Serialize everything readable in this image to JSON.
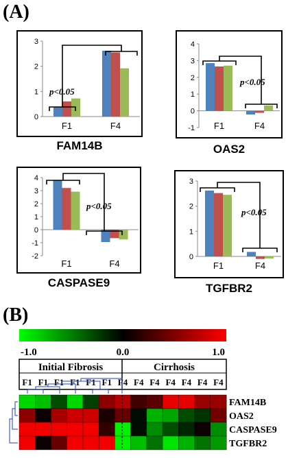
{
  "panel_labels": {
    "a": "(A)",
    "b": "(B)"
  },
  "series_colors": [
    "#4f81bd",
    "#c0504d",
    "#9bbb59"
  ],
  "chart_data": [
    {
      "type": "bar",
      "title": "FAM14B",
      "categories": [
        "F1",
        "F4"
      ],
      "series": [
        {
          "values": [
            0.38,
            2.62
          ]
        },
        {
          "values": [
            0.6,
            2.55
          ]
        },
        {
          "values": [
            0.72,
            1.92
          ]
        }
      ],
      "ylim": [
        0,
        3
      ],
      "yticks": [
        "0",
        "1",
        "2",
        "3"
      ],
      "annotation": "p<0.05"
    },
    {
      "type": "bar",
      "title": "OAS2",
      "categories": [
        "F1",
        "F4"
      ],
      "series": [
        {
          "values": [
            2.85,
            -0.22
          ]
        },
        {
          "values": [
            2.65,
            -0.12
          ]
        },
        {
          "values": [
            2.7,
            0.32
          ]
        }
      ],
      "ylim": [
        -1,
        4
      ],
      "yticks": [
        "-1",
        "0",
        "1",
        "2",
        "3",
        "4"
      ],
      "annotation": "p<0.05"
    },
    {
      "type": "bar",
      "title": "CASPASE9",
      "categories": [
        "F1",
        "F4"
      ],
      "series": [
        {
          "values": [
            3.8,
            -0.95
          ]
        },
        {
          "values": [
            3.2,
            -0.65
          ]
        },
        {
          "values": [
            2.92,
            -0.75
          ]
        }
      ],
      "ylim": [
        -2,
        4
      ],
      "yticks": [
        "-2",
        "-1",
        "0",
        "1",
        "2",
        "3",
        "4"
      ],
      "annotation": "p<0.05"
    },
    {
      "type": "bar",
      "title": "TGFBR2",
      "categories": [
        "F1",
        "F4"
      ],
      "series": [
        {
          "values": [
            2.62,
            0.18
          ]
        },
        {
          "values": [
            2.52,
            -0.1
          ]
        },
        {
          "values": [
            2.45,
            -0.08
          ]
        }
      ],
      "ylim": [
        0,
        3
      ],
      "yticks": [
        "0",
        "1",
        "2",
        "3"
      ],
      "annotation": "p<0.05"
    },
    {
      "type": "heatmap",
      "colorbar": {
        "min_label": "-1.0",
        "mid_label": "0.0",
        "max_label": "1.0",
        "range": [
          -1,
          1
        ]
      },
      "groups": [
        "Initial Fibrosis",
        "Cirrhosis"
      ],
      "columns": [
        "F1",
        "F1",
        "F1",
        "F1",
        "F1",
        "F1",
        "F4",
        "F4",
        "F4",
        "F4",
        "F4",
        "F4",
        "F4"
      ],
      "rows": [
        "FAM14B",
        "OAS2",
        "CASPASE9",
        "TGFBR2"
      ],
      "values": [
        [
          -0.85,
          -0.75,
          -0.3,
          -0.85,
          -0.25,
          0.55,
          0.7,
          0.25,
          0.35,
          0.9,
          0.9,
          0.6,
          0.6
        ],
        [
          0.55,
          0.05,
          0.65,
          0.8,
          0.8,
          0.1,
          0.4,
          -0.05,
          -0.7,
          -0.65,
          -0.3,
          -0.2,
          0.45
        ],
        [
          0.95,
          0.95,
          0.95,
          0.95,
          0.95,
          0.2,
          -0.95,
          -0.05,
          -0.55,
          -0.3,
          -0.15,
          0.05,
          -0.55
        ],
        [
          0.95,
          0.05,
          0.4,
          0.95,
          0.95,
          0.95,
          -0.95,
          -0.75,
          -0.45,
          -0.9,
          -0.7,
          -0.45,
          -0.6
        ]
      ]
    }
  ]
}
